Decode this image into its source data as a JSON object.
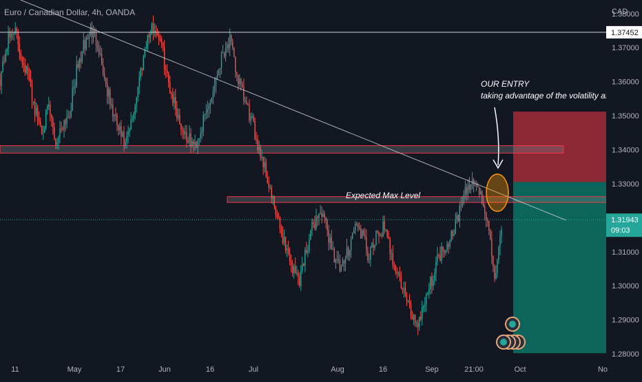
{
  "header": {
    "title": "Euro / Canadian Dollar, 4h, OANDA",
    "currency": "CAD"
  },
  "chart_data": {
    "type": "candlestick",
    "title": "Euro / Canadian Dollar, 4h, OANDA",
    "ylabel": "CAD",
    "ylim": [
      1.278,
      1.384
    ],
    "y_ticks": [
      "1.38000",
      "1.37000",
      "1.36000",
      "1.35000",
      "1.34000",
      "1.33000",
      "1.31000",
      "1.30000",
      "1.29000",
      "1.28000"
    ],
    "x_ticks": [
      "11",
      "May",
      "17",
      "Jun",
      "16",
      "Jul",
      "Aug",
      "16",
      "Sep",
      "21:00",
      "Oct",
      "No"
    ],
    "grid": false,
    "price_path": [
      1.361,
      1.371,
      1.376,
      1.368,
      1.362,
      1.352,
      1.346,
      1.352,
      1.342,
      1.348,
      1.351,
      1.363,
      1.37,
      1.375,
      1.372,
      1.361,
      1.352,
      1.346,
      1.341,
      1.349,
      1.361,
      1.372,
      1.376,
      1.373,
      1.361,
      1.354,
      1.347,
      1.343,
      1.341,
      1.347,
      1.353,
      1.361,
      1.369,
      1.372,
      1.362,
      1.355,
      1.349,
      1.342,
      1.335,
      1.326,
      1.318,
      1.312,
      1.305,
      1.302,
      1.311,
      1.318,
      1.322,
      1.316,
      1.309,
      1.304,
      1.311,
      1.318,
      1.315,
      1.308,
      1.314,
      1.317,
      1.311,
      1.304,
      1.298,
      1.292,
      1.289,
      1.296,
      1.302,
      1.309,
      1.312,
      1.316,
      1.322,
      1.328,
      1.331,
      1.327,
      1.318,
      1.303,
      1.315
    ],
    "horizontal_level": {
      "value": 1.37452,
      "label": "1.37452"
    },
    "current_price": {
      "value": 1.31943,
      "label": "1.31943",
      "countdown": "09:03"
    },
    "zones": [
      {
        "name": "upper-zone",
        "y_low": 1.339,
        "y_high": 1.3412
      },
      {
        "name": "expected-max-zone",
        "y_low": 1.3245,
        "y_high": 1.3262
      }
    ],
    "short_position": {
      "entry": 1.3305,
      "stop": 1.3512,
      "target": 1.2802
    },
    "annotations": [
      {
        "name": "expected-max-label",
        "text": "Expected Max Level"
      },
      {
        "name": "entry-title",
        "text": "OUR ENTRY"
      },
      {
        "name": "entry-subtitle",
        "text": "taking advantage of the volatility af"
      }
    ],
    "colors": {
      "background": "#131722",
      "up": "#26a69a",
      "down": "#ef5350",
      "stop_zone": "#f23645",
      "target_zone": "#089981",
      "zone_fill": "#787b86",
      "zone_border": "#f23645",
      "entry_circle": "#ff9800"
    }
  }
}
